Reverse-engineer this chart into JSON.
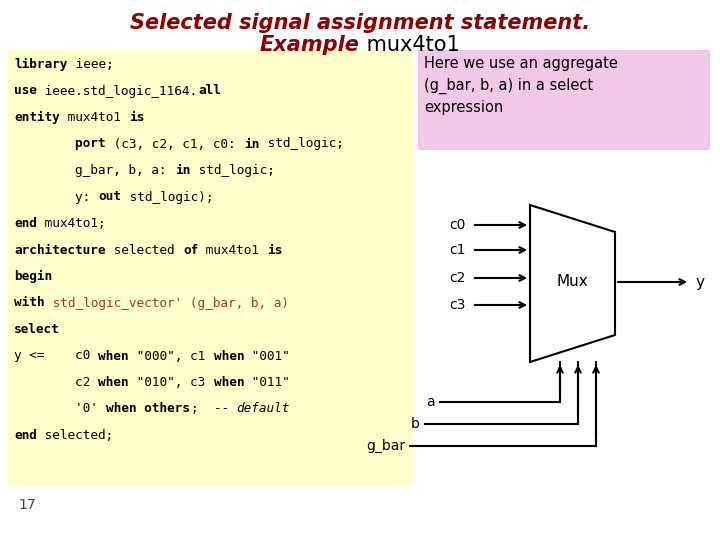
{
  "title_line1": "Selected signal assignment statement.",
  "title_line2_bold": "Example",
  "title_line2_plain": " mux4to1",
  "title_color": "#8B0000",
  "bg_color": "#FFFFFF",
  "code_bg": "#FFFFCC",
  "note_bg": "#F2C8E8",
  "note_lines": [
    "Here we use an aggregate",
    "(g_bar, b, a) in a select",
    "expression"
  ],
  "page_number": "17",
  "mux_inputs": [
    "c0",
    "c1",
    "c2",
    "c3"
  ],
  "mux_control": [
    "a",
    "b",
    "g_bar"
  ],
  "mux_output": "y",
  "code_lines": [
    [
      [
        "library",
        true,
        "#000000"
      ],
      [
        " ieee;",
        false,
        "#000000"
      ]
    ],
    [
      [
        "use",
        true,
        "#000000"
      ],
      [
        " ieee.std_logic_1164.",
        false,
        "#000000"
      ],
      [
        "all",
        true,
        "#000000"
      ]
    ],
    [
      [
        "entity",
        true,
        "#000000"
      ],
      [
        " mux4to1 ",
        false,
        "#000000"
      ],
      [
        "is",
        true,
        "#000000"
      ]
    ],
    [
      [
        "        port",
        true,
        "#000000"
      ],
      [
        " (c3, c2, c1, c0: ",
        false,
        "#000000"
      ],
      [
        "in",
        true,
        "#000000"
      ],
      [
        " std_logic;",
        false,
        "#000000"
      ]
    ],
    [
      [
        "        g_bar, b, a: ",
        false,
        "#000000"
      ],
      [
        "in",
        true,
        "#000000"
      ],
      [
        " std_logic;",
        false,
        "#000000"
      ]
    ],
    [
      [
        "        y: ",
        false,
        "#000000"
      ],
      [
        "out",
        true,
        "#000000"
      ],
      [
        " std_logic);",
        false,
        "#000000"
      ]
    ],
    [
      [
        "end",
        true,
        "#000000"
      ],
      [
        " mux4to1;",
        false,
        "#000000"
      ]
    ],
    [
      [
        "architecture",
        true,
        "#000000"
      ],
      [
        " selected ",
        false,
        "#000000"
      ],
      [
        "of",
        true,
        "#000000"
      ],
      [
        " mux4to1 ",
        false,
        "#000000"
      ],
      [
        "is",
        true,
        "#000000"
      ]
    ],
    [
      [
        "begin",
        true,
        "#000000"
      ]
    ],
    [
      [
        "with",
        true,
        "#000000"
      ],
      [
        " std_logic_vector' (g_bar, b, a)",
        false,
        "#AA3333"
      ]
    ],
    [
      [
        "select",
        true,
        "#000000"
      ]
    ],
    [
      [
        "y <=    c0 ",
        false,
        "#000000"
      ],
      [
        "when",
        true,
        "#000000"
      ],
      [
        " \"000\", c1 ",
        false,
        "#000000"
      ],
      [
        "when",
        true,
        "#000000"
      ],
      [
        " \"001\"",
        false,
        "#000000"
      ]
    ],
    [
      [
        "        c2 ",
        false,
        "#000000"
      ],
      [
        "when",
        true,
        "#000000"
      ],
      [
        " \"010\", c3 ",
        false,
        "#000000"
      ],
      [
        "when",
        true,
        "#000000"
      ],
      [
        " \"011\"",
        false,
        "#000000"
      ]
    ],
    [
      [
        "        '0' ",
        false,
        "#000000"
      ],
      [
        "when others",
        true,
        "#000000"
      ],
      [
        ";  -- ",
        false,
        "#000000"
      ],
      [
        "default",
        false,
        "#000000",
        true
      ]
    ],
    [
      [
        "end",
        true,
        "#000000"
      ],
      [
        " selected;",
        false,
        "#000000"
      ]
    ]
  ]
}
